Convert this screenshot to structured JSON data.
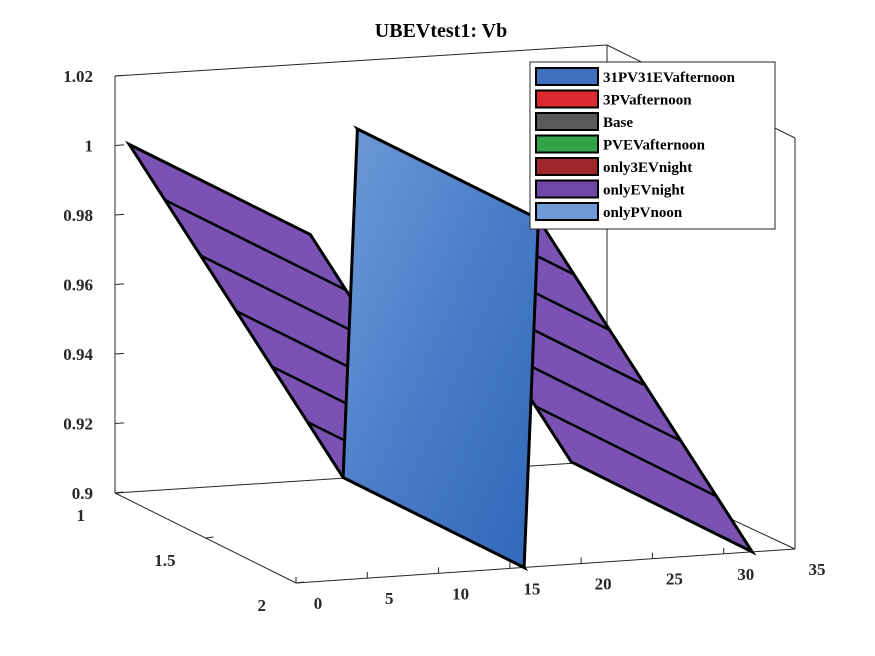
{
  "chart_data": {
    "type": "surface3d",
    "title": "UBEVtest1: Vb",
    "xlabel": "",
    "ylabel": "",
    "zlabel": "",
    "x_ticks": [
      "0",
      "5",
      "10",
      "15",
      "20",
      "25",
      "30",
      "35"
    ],
    "y_ticks": [
      "1",
      "1.5",
      "2"
    ],
    "z_ticks": [
      "0.9",
      "0.92",
      "0.94",
      "0.96",
      "0.98",
      "1",
      "1.02"
    ],
    "xlim": [
      0,
      35
    ],
    "ylim": [
      1,
      2
    ],
    "zlim": [
      0.9,
      1.02
    ],
    "legend": {
      "placement": "top-right",
      "entries": [
        {
          "label": "31PV31EVafternoon",
          "color": "#3f6fbf"
        },
        {
          "label": "3PVafternoon",
          "color": "#dc2b30"
        },
        {
          "label": "Base",
          "color": "#5a5a5a"
        },
        {
          "label": "PVEVafternoon",
          "color": "#35a04a"
        },
        {
          "label": "only3EVnight",
          "color": "#a2272a"
        },
        {
          "label": "onlyEVnight",
          "color": "#7046a6"
        },
        {
          "label": "onlyPVnoon",
          "color": "#6f9ad8"
        }
      ]
    },
    "surfaces": [
      {
        "name": "onlyEVnight",
        "color": "#7a52b3",
        "segments": [
          {
            "x": [
              1,
              16
            ],
            "z_start": 1.0,
            "z_end": 0.9
          },
          {
            "x": [
              17,
              32
            ],
            "z_start": 1.0,
            "z_end": 0.9
          }
        ]
      },
      {
        "name": "onlyPVnoon",
        "color": "#3b78c4",
        "segments": [
          {
            "x": [
              16,
              17
            ],
            "z_start": 0.9,
            "z_end": 1.0
          }
        ]
      }
    ]
  }
}
